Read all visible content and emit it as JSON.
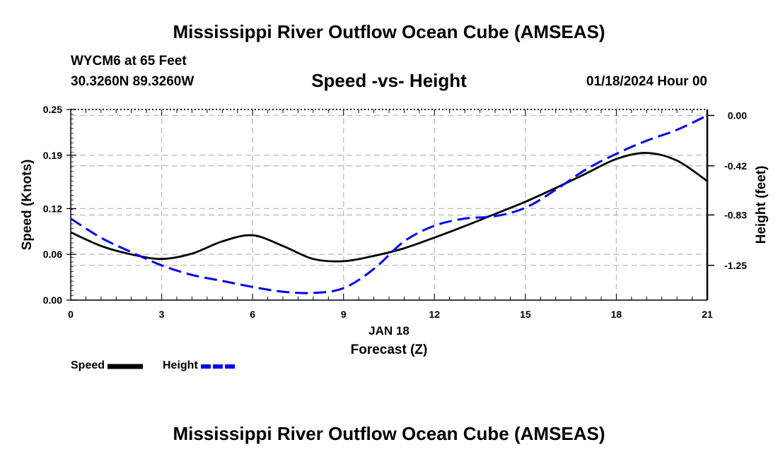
{
  "header": {
    "title": "Mississippi River Outflow Ocean Cube (AMSEAS)",
    "station": "WYCM6 at 65 Feet",
    "coords": "30.3260N  89.3260W",
    "subtitle": "Speed -vs- Height",
    "date": "01/18/2024 Hour 00"
  },
  "footer": {
    "title": "Mississippi River Outflow Ocean Cube (AMSEAS)"
  },
  "legend": {
    "speed_label": "Speed",
    "height_label": "Height"
  },
  "chart_data": {
    "type": "line",
    "title": "Speed -vs- Height",
    "xlabel": "Forecast (Z)",
    "xlabel_date": "JAN 18",
    "ylabel": "Speed (Knots)",
    "y2label": "Height (feet)",
    "xlim": [
      0,
      21
    ],
    "ylim": [
      0,
      0.25
    ],
    "y2lim": [
      -1.54,
      0.05
    ],
    "x_ticks": [
      0,
      3,
      6,
      9,
      12,
      15,
      18,
      21
    ],
    "x_tick_labels": [
      "0",
      "3",
      "6",
      "9",
      "12",
      "15",
      "18",
      "21"
    ],
    "y_ticks": [
      0.0,
      0.06,
      0.12,
      0.19,
      0.25
    ],
    "y_tick_labels": [
      "0.00",
      "0.06",
      "0.12",
      "0.19",
      "0.25"
    ],
    "y2_ticks": [
      0.0,
      -0.42,
      -0.83,
      -1.25
    ],
    "y2_tick_labels": [
      "0.00",
      "-0.42",
      "-0.83",
      "-1.25"
    ],
    "grid": true,
    "series": [
      {
        "name": "Speed",
        "axis": "left",
        "color": "#000000",
        "style": "solid",
        "x": [
          0,
          1,
          2,
          3,
          4,
          5,
          6,
          7,
          8,
          9,
          10,
          11,
          12,
          13,
          14,
          15,
          16,
          17,
          18,
          19,
          20,
          21
        ],
        "values": [
          0.089,
          0.071,
          0.06,
          0.054,
          0.061,
          0.077,
          0.085,
          0.071,
          0.054,
          0.051,
          0.058,
          0.068,
          0.082,
          0.097,
          0.113,
          0.129,
          0.147,
          0.166,
          0.185,
          0.193,
          0.183,
          0.156
        ]
      },
      {
        "name": "Height",
        "axis": "right",
        "color": "#0000ee",
        "style": "dashed",
        "x": [
          0,
          1,
          2,
          3,
          4,
          5,
          6,
          7,
          8,
          9,
          10,
          11,
          12,
          13,
          14,
          15,
          16,
          17,
          18,
          19,
          20,
          21
        ],
        "values": [
          -0.86,
          -1.02,
          -1.14,
          -1.25,
          -1.33,
          -1.38,
          -1.43,
          -1.47,
          -1.48,
          -1.44,
          -1.28,
          -1.05,
          -0.92,
          -0.86,
          -0.84,
          -0.77,
          -0.62,
          -0.45,
          -0.32,
          -0.21,
          -0.12,
          0.0
        ]
      }
    ]
  }
}
